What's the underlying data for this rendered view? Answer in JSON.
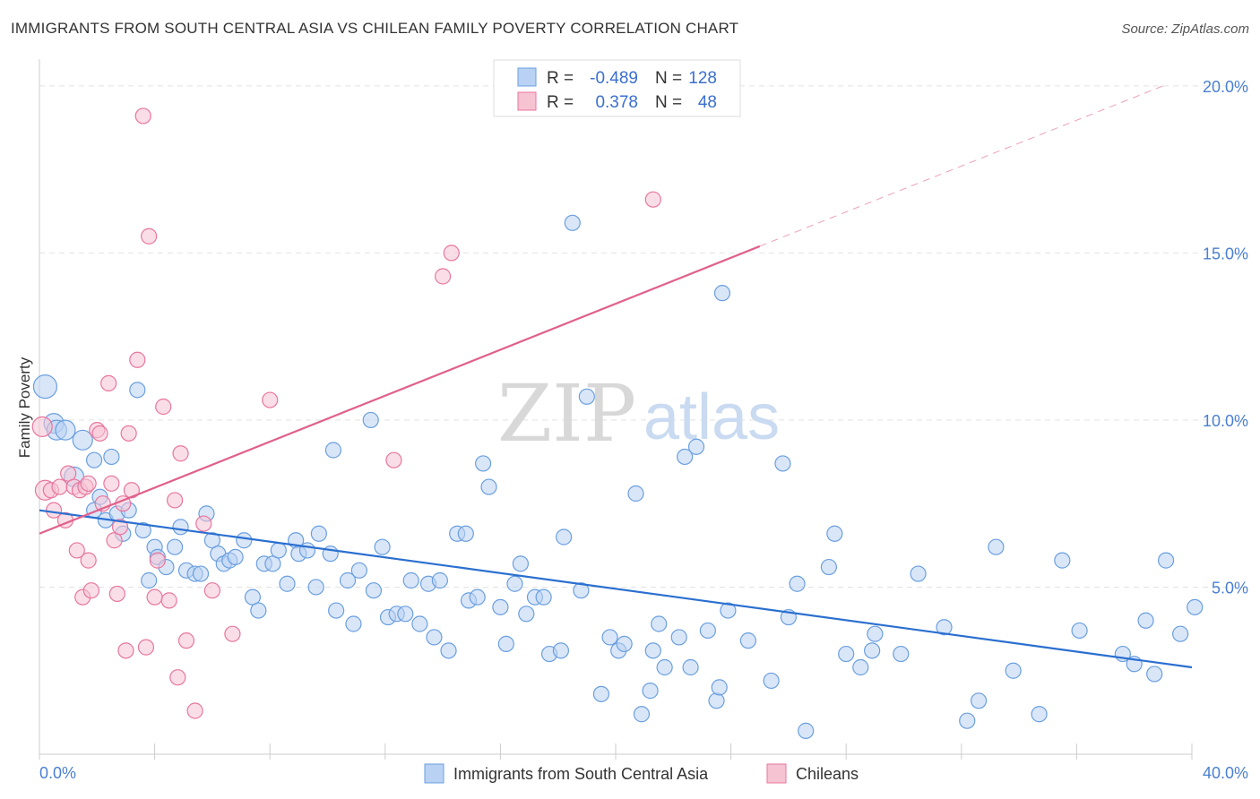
{
  "title": "IMMIGRANTS FROM SOUTH CENTRAL ASIA VS CHILEAN FAMILY POVERTY CORRELATION CHART",
  "source": "Source: ZipAtlas.com",
  "watermark": {
    "zip": "ZIP",
    "atlas": "atlas"
  },
  "colors": {
    "blue": "#6a9fe0",
    "blue_fill": "#b9d2f3",
    "pink": "#e8769d",
    "pink_fill": "#f6c3d3",
    "blue_line": "#2a6fd0",
    "pink_line": "#e0608c",
    "axis_text": "#4a7fd1"
  },
  "legend_top": [
    {
      "r_label": "R =",
      "r_value": "-0.489",
      "n_label": "N =",
      "n_value": "128"
    },
    {
      "r_label": "R =",
      "r_value": "0.378",
      "n_label": "N =",
      "n_value": "48"
    }
  ],
  "chart_data": {
    "type": "scatter",
    "xlabel": "",
    "ylabel": "Family Poverty",
    "xlim": [
      0,
      40
    ],
    "ylim": [
      0,
      20.8
    ],
    "x_tick_labels": [
      "0.0%",
      "40.0%"
    ],
    "y_ticks": [
      5,
      10,
      15,
      20
    ],
    "y_tick_labels": [
      "5.0%",
      "10.0%",
      "15.0%",
      "20.0%"
    ],
    "series": [
      {
        "name": "Immigrants from South Central Asia",
        "color": "#6a9fe0",
        "trend": {
          "x": [
            0,
            40
          ],
          "y": [
            7.3,
            2.6
          ]
        },
        "points": [
          [
            0.2,
            11.0
          ],
          [
            0.5,
            9.9
          ],
          [
            0.6,
            9.7
          ],
          [
            0.9,
            9.7
          ],
          [
            1.2,
            8.3
          ],
          [
            1.5,
            9.4
          ],
          [
            1.9,
            7.3
          ],
          [
            1.9,
            8.8
          ],
          [
            2.1,
            7.7
          ],
          [
            2.3,
            7.0
          ],
          [
            2.5,
            8.9
          ],
          [
            2.7,
            7.2
          ],
          [
            2.9,
            6.6
          ],
          [
            3.1,
            7.3
          ],
          [
            3.4,
            10.9
          ],
          [
            3.6,
            6.7
          ],
          [
            3.8,
            5.2
          ],
          [
            4.0,
            6.2
          ],
          [
            4.1,
            5.9
          ],
          [
            4.4,
            5.6
          ],
          [
            4.7,
            6.2
          ],
          [
            4.9,
            6.8
          ],
          [
            5.1,
            5.5
          ],
          [
            5.4,
            5.4
          ],
          [
            5.6,
            5.4
          ],
          [
            5.8,
            7.2
          ],
          [
            6.0,
            6.4
          ],
          [
            6.2,
            6.0
          ],
          [
            6.4,
            5.7
          ],
          [
            6.6,
            5.8
          ],
          [
            6.8,
            5.9
          ],
          [
            7.1,
            6.4
          ],
          [
            7.4,
            4.7
          ],
          [
            7.6,
            4.3
          ],
          [
            7.8,
            5.7
          ],
          [
            8.1,
            5.7
          ],
          [
            8.3,
            6.1
          ],
          [
            8.6,
            5.1
          ],
          [
            8.9,
            6.4
          ],
          [
            9.0,
            6.0
          ],
          [
            9.3,
            6.1
          ],
          [
            9.6,
            5.0
          ],
          [
            9.7,
            6.6
          ],
          [
            10.1,
            6.0
          ],
          [
            10.2,
            9.1
          ],
          [
            10.3,
            4.3
          ],
          [
            10.7,
            5.2
          ],
          [
            10.9,
            3.9
          ],
          [
            11.1,
            5.5
          ],
          [
            11.5,
            10.0
          ],
          [
            11.6,
            4.9
          ],
          [
            11.9,
            6.2
          ],
          [
            12.1,
            4.1
          ],
          [
            12.4,
            4.2
          ],
          [
            12.7,
            4.2
          ],
          [
            12.9,
            5.2
          ],
          [
            13.2,
            3.9
          ],
          [
            13.5,
            5.1
          ],
          [
            13.7,
            3.5
          ],
          [
            13.9,
            5.2
          ],
          [
            14.2,
            3.1
          ],
          [
            14.5,
            6.6
          ],
          [
            14.8,
            6.6
          ],
          [
            14.9,
            4.6
          ],
          [
            15.2,
            4.7
          ],
          [
            15.4,
            8.7
          ],
          [
            15.6,
            8.0
          ],
          [
            16.0,
            4.4
          ],
          [
            16.2,
            3.3
          ],
          [
            16.5,
            5.1
          ],
          [
            16.7,
            5.7
          ],
          [
            16.9,
            4.2
          ],
          [
            17.2,
            4.7
          ],
          [
            17.5,
            4.7
          ],
          [
            17.7,
            3.0
          ],
          [
            18.1,
            3.1
          ],
          [
            18.2,
            6.5
          ],
          [
            18.5,
            15.9
          ],
          [
            18.8,
            4.9
          ],
          [
            19.0,
            10.7
          ],
          [
            19.5,
            1.8
          ],
          [
            19.8,
            3.5
          ],
          [
            20.1,
            3.1
          ],
          [
            20.3,
            3.3
          ],
          [
            20.7,
            7.8
          ],
          [
            20.9,
            1.2
          ],
          [
            21.2,
            1.9
          ],
          [
            21.3,
            3.1
          ],
          [
            21.5,
            3.9
          ],
          [
            21.7,
            2.6
          ],
          [
            22.2,
            3.5
          ],
          [
            22.4,
            8.9
          ],
          [
            22.6,
            2.6
          ],
          [
            22.8,
            9.2
          ],
          [
            23.2,
            3.7
          ],
          [
            23.5,
            1.6
          ],
          [
            23.6,
            2.0
          ],
          [
            23.7,
            13.8
          ],
          [
            23.9,
            4.3
          ],
          [
            24.6,
            3.4
          ],
          [
            25.4,
            2.2
          ],
          [
            25.8,
            8.7
          ],
          [
            26.0,
            4.1
          ],
          [
            26.3,
            5.1
          ],
          [
            26.6,
            0.7
          ],
          [
            27.4,
            5.6
          ],
          [
            27.6,
            6.6
          ],
          [
            28.0,
            3.0
          ],
          [
            28.5,
            2.6
          ],
          [
            28.9,
            3.1
          ],
          [
            29.0,
            3.6
          ],
          [
            29.9,
            3.0
          ],
          [
            30.5,
            5.4
          ],
          [
            31.4,
            3.8
          ],
          [
            32.2,
            1.0
          ],
          [
            32.6,
            1.6
          ],
          [
            33.2,
            6.2
          ],
          [
            33.8,
            2.5
          ],
          [
            34.7,
            1.2
          ],
          [
            35.5,
            5.8
          ],
          [
            36.1,
            3.7
          ],
          [
            37.6,
            3.0
          ],
          [
            38.0,
            2.7
          ],
          [
            38.4,
            4.0
          ],
          [
            38.7,
            2.4
          ],
          [
            39.1,
            5.8
          ],
          [
            39.6,
            3.6
          ],
          [
            40.1,
            4.4
          ]
        ]
      },
      {
        "name": "Chileans",
        "color": "#e8769d",
        "trend": {
          "x": [
            0,
            25
          ],
          "y": [
            6.6,
            15.2
          ]
        },
        "trend_dashed": {
          "x": [
            25,
            39.0
          ],
          "y": [
            15.2,
            20.0
          ]
        },
        "points": [
          [
            0.1,
            9.8
          ],
          [
            0.2,
            7.9
          ],
          [
            0.4,
            7.9
          ],
          [
            0.5,
            7.3
          ],
          [
            0.7,
            8.0
          ],
          [
            0.9,
            7.0
          ],
          [
            1.0,
            8.4
          ],
          [
            1.2,
            8.0
          ],
          [
            1.3,
            6.1
          ],
          [
            1.4,
            7.9
          ],
          [
            1.5,
            4.7
          ],
          [
            1.6,
            8.0
          ],
          [
            1.7,
            5.8
          ],
          [
            1.8,
            4.9
          ],
          [
            2.0,
            9.7
          ],
          [
            2.1,
            9.6
          ],
          [
            2.2,
            7.5
          ],
          [
            2.4,
            11.1
          ],
          [
            2.5,
            8.1
          ],
          [
            2.6,
            6.4
          ],
          [
            2.7,
            4.8
          ],
          [
            2.8,
            6.8
          ],
          [
            2.9,
            7.5
          ],
          [
            3.0,
            3.1
          ],
          [
            3.1,
            9.6
          ],
          [
            3.2,
            7.9
          ],
          [
            3.4,
            11.8
          ],
          [
            3.6,
            19.1
          ],
          [
            3.7,
            3.2
          ],
          [
            3.8,
            15.5
          ],
          [
            4.0,
            4.7
          ],
          [
            4.1,
            5.8
          ],
          [
            4.3,
            10.4
          ],
          [
            4.5,
            4.6
          ],
          [
            4.7,
            7.6
          ],
          [
            4.8,
            2.3
          ],
          [
            4.9,
            9.0
          ],
          [
            5.1,
            3.4
          ],
          [
            5.4,
            1.3
          ],
          [
            5.7,
            6.9
          ],
          [
            6.0,
            4.9
          ],
          [
            6.7,
            3.6
          ],
          [
            8.0,
            10.6
          ],
          [
            12.3,
            8.8
          ],
          [
            14.0,
            14.3
          ],
          [
            14.3,
            15.0
          ],
          [
            21.3,
            16.6
          ],
          [
            1.7,
            8.1
          ]
        ]
      }
    ]
  },
  "bottom_legend": [
    {
      "label": "Immigrants from South Central Asia"
    },
    {
      "label": "Chileans"
    }
  ]
}
